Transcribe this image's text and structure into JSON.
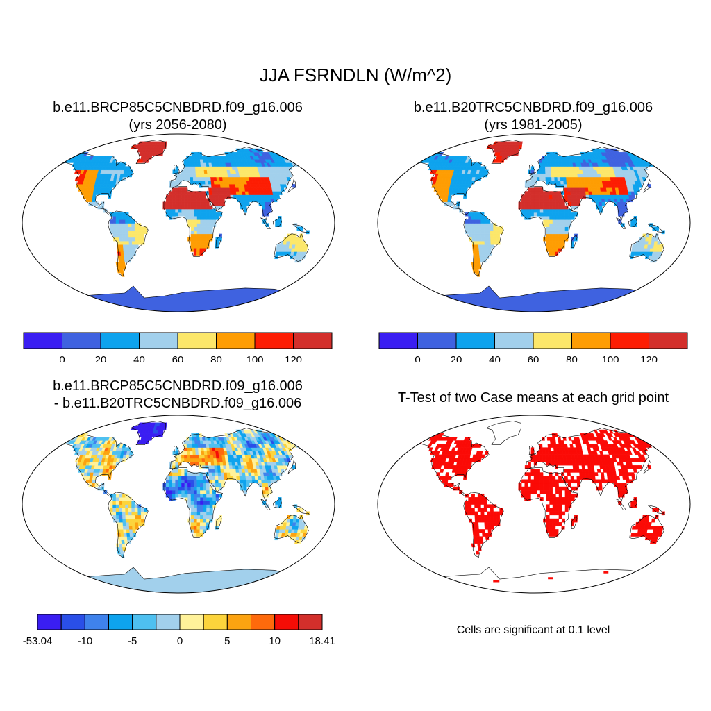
{
  "figure": {
    "title": "JJA FSRNDLN (W/m^2)",
    "panels": [
      {
        "title_line1": "b.e11.BRCP85C5CNBDRD.f09_g16.006",
        "title_line2": "(yrs 2056-2080)"
      },
      {
        "title_line1": "b.e11.B20TRC5CNBDRD.f09_g16.006",
        "title_line2": "(yrs 1981-2005)"
      },
      {
        "title_line1": "b.e11.BRCP85C5CNBDRD.f09_g16.006",
        "title_line2": "- b.e11.B20TRC5CNBDRD.f09_g16.006"
      },
      {
        "title_line1": "T-Test of two Case means at each grid point"
      }
    ],
    "significance_note": "Cells are significant at 0.1 level"
  },
  "colorbars": {
    "absolute": {
      "labels": [
        "0",
        "20",
        "40",
        "60",
        "80",
        "100",
        "120"
      ],
      "colors": [
        "#3a1ef2",
        "#3f62e0",
        "#0ea3ee",
        "#a2d0ec",
        "#fce76a",
        "#fe9d03",
        "#fd1d03",
        "#d32f2b"
      ]
    },
    "difference": {
      "labels": [
        "-53.04",
        "-10",
        "-5",
        "0",
        "5",
        "10",
        "18.41"
      ],
      "colors": [
        "#3a1ef2",
        "#2a4fe8",
        "#3f82ec",
        "#0ea3ee",
        "#4ec0f0",
        "#a2d0ec",
        "#fff29a",
        "#fcd43c",
        "#fca311",
        "#fe6a0c",
        "#f50d06",
        "#d32f2b"
      ]
    }
  },
  "palette": {
    "ocean": "#ffffff",
    "antarctica_abs": "#3f62e0",
    "antarctica_diff": "#a2d0ec",
    "significant": "#fb0a06",
    "outline": "#000000"
  }
}
